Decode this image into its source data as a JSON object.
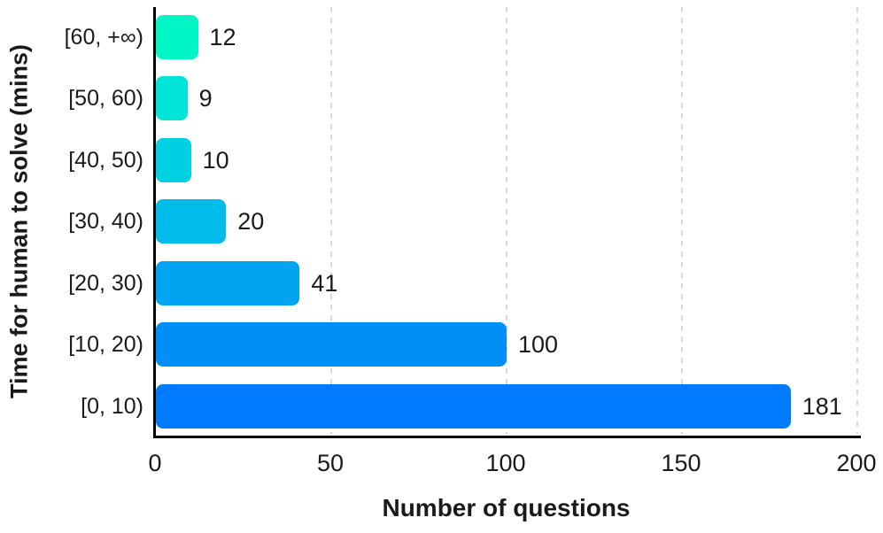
{
  "chart_data": {
    "type": "bar",
    "orientation": "horizontal",
    "title": "",
    "xlabel": "Number of questions",
    "ylabel": "Time for human to solve (mins)",
    "categories": [
      "[60, +∞)",
      "[50, 60)",
      "[40, 50)",
      "[30, 40)",
      "[20, 30)",
      "[10, 20)",
      "[0, 10)"
    ],
    "values": [
      12,
      9,
      10,
      20,
      41,
      100,
      181
    ],
    "data_labels": [
      "12",
      "9",
      "10",
      "20",
      "41",
      "100",
      "181"
    ],
    "bar_colors": [
      "#00f7c5",
      "#00e5d8",
      "#00d1e2",
      "#00bceb",
      "#00a4f0",
      "#008ff6",
      "#007bff"
    ],
    "xlim": [
      0,
      200
    ],
    "x_ticks": [
      0,
      50,
      100,
      150,
      200
    ],
    "x_tick_labels": [
      "0",
      "50",
      "100",
      "150",
      "200"
    ],
    "grid": "vertical-dashed",
    "gridline_color": "#d9d9d9",
    "axis_color": "#000000",
    "text_color": "#1a1a1a",
    "legend": "none",
    "background": "#ffffff"
  }
}
